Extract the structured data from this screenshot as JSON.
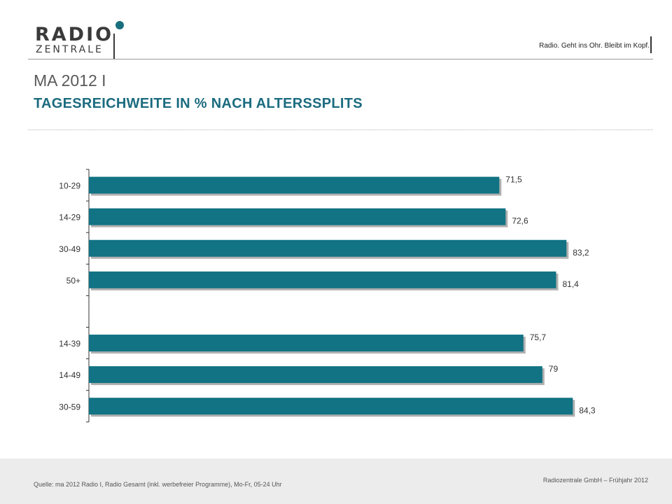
{
  "logo": {
    "line1": "RADIO",
    "line2": "ZENTRALE"
  },
  "header": {
    "tagline": "Radio. Geht ins Ohr. Bleibt im Kopf.",
    "title": "MA 2012 I",
    "subtitle": "TAGESREICHWEITE IN % NACH ALTERSSPLITS"
  },
  "colors": {
    "bar": "#117383",
    "title": "#5a5a5a",
    "subtitle": "#1b6b7f"
  },
  "chart_data": {
    "type": "bar",
    "orientation": "horizontal",
    "title": "",
    "xlabel": "",
    "ylabel": "",
    "categories": [
      "10-29",
      "14-29",
      "30-49",
      "50+",
      "",
      "14-39",
      "14-49",
      "30-59"
    ],
    "values": [
      71.5,
      72.6,
      83.2,
      81.4,
      null,
      75.7,
      79,
      84.3
    ],
    "data_labels": [
      "71,5",
      "72,6",
      "83,2",
      "81,4",
      "",
      "75,7",
      "79",
      "84,3"
    ],
    "grid": false,
    "legend": "none"
  },
  "footer": {
    "source": "Quelle: ma 2012 Radio I, Radio Gesamt (inkl. werbefreier Programme), Mo-Fr, 05-24 Uhr",
    "copyright": "Radiozentrale GmbH – Frühjahr 2012"
  }
}
